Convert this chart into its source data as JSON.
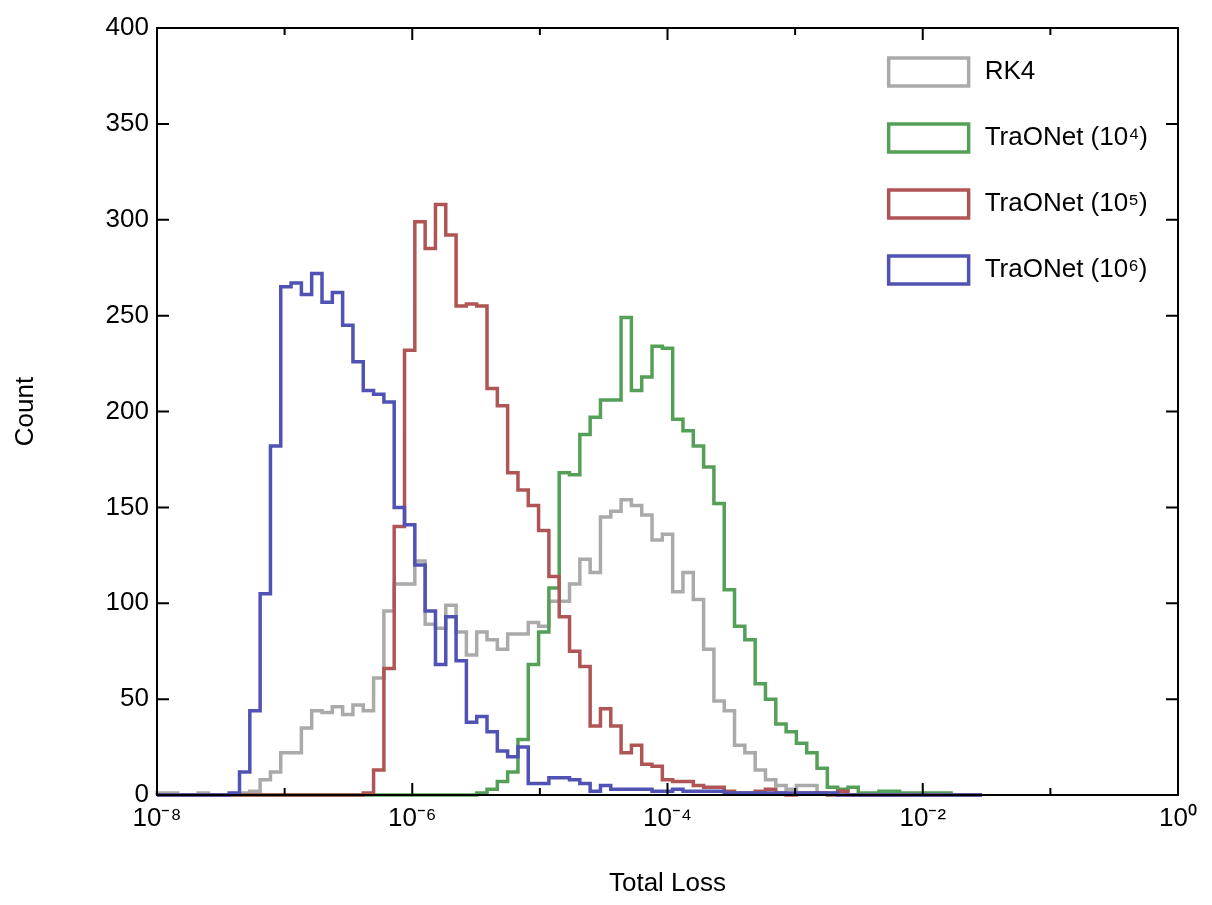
{
  "chart_data": {
    "type": "histogram",
    "xlabel": "Total Loss",
    "ylabel": "Count",
    "log": "x",
    "grid": false,
    "legend": "top right",
    "xlim": [
      1e-08,
      1
    ],
    "ylim": [
      0,
      400
    ],
    "xticks": [
      {
        "value": 1e-08,
        "label": "10⁻⁸"
      },
      {
        "value": 1e-07,
        "label": null
      },
      {
        "value": 1e-06,
        "label": "10⁻⁶"
      },
      {
        "value": 1e-05,
        "label": null
      },
      {
        "value": 0.0001,
        "label": "10⁻⁴"
      },
      {
        "value": 0.001,
        "label": null
      },
      {
        "value": 0.01,
        "label": "10⁻²"
      },
      {
        "value": 0.1,
        "label": null
      },
      {
        "value": 1,
        "label": "10⁰"
      }
    ],
    "yticks": [
      0,
      50,
      100,
      150,
      200,
      250,
      300,
      350,
      400
    ],
    "bins": [
      1e-08,
      1.2045e-08,
      1.4508e-08,
      1.7475e-08,
      2.1049e-08,
      2.5354e-08,
      3.0539e-08,
      3.6785e-08,
      4.4306e-08,
      5.3367e-08,
      6.4281e-08,
      7.7426e-08,
      9.326e-08,
      1.1233e-07,
      1.353e-07,
      1.6297e-07,
      1.963e-07,
      2.3645e-07,
      2.848e-07,
      3.4304e-07,
      4.132e-07,
      4.977e-07,
      5.9948e-07,
      7.2208e-07,
      8.6975e-07,
      1.0476e-06,
      1.2619e-06,
      1.5199e-06,
      1.8307e-06,
      2.2051e-06,
      2.6561e-06,
      3.1993e-06,
      3.8535e-06,
      4.6416e-06,
      5.5908e-06,
      6.7342e-06,
      8.1113e-06,
      9.7701e-06,
      1.1768e-05,
      1.4175e-05,
      1.7074e-05,
      2.0565e-05,
      2.4771e-05,
      2.9836e-05,
      3.5938e-05,
      4.3288e-05,
      5.214e-05,
      6.2803e-05,
      7.5646e-05,
      9.1116e-05,
      0.00010975,
      0.00013219,
      0.00015923,
      0.00019179,
      0.00023101,
      0.00027826,
      0.00033516,
      0.0004037,
      0.00048626,
      0.0005857,
      0.00070548,
      0.00084975,
      0.0010235,
      0.0012328,
      0.001485,
      0.0017886,
      0.0021544,
      0.002595,
      0.0031257,
      0.0037649,
      0.0045348,
      0.0054622,
      0.0065793,
      0.0079248,
      0.0095455,
      0.011498,
      0.013849,
      0.016681,
      0.020092,
      0.024201,
      0.02915
    ],
    "series": [
      {
        "name": "RK4",
        "color": "#aaaaaa",
        "values": [
          1,
          1,
          0,
          0,
          1,
          0,
          0,
          0,
          1,
          2,
          8,
          12,
          22,
          22,
          35,
          44,
          43,
          46,
          42,
          47,
          44,
          61,
          96,
          110,
          110,
          122,
          89,
          87,
          99,
          85,
          73,
          85,
          81,
          76,
          84,
          84,
          90,
          88,
          101,
          101,
          110,
          123,
          116,
          145,
          148,
          154,
          151,
          146,
          133,
          136,
          106,
          116,
          102,
          76,
          49,
          44,
          26,
          22,
          13,
          8,
          5,
          3,
          5,
          5,
          1,
          1,
          0,
          0,
          0,
          0,
          0,
          0,
          0,
          0,
          0,
          0,
          0,
          0,
          0,
          0
        ]
      },
      {
        "name": "TraONet (10⁴)",
        "color": "#55a058",
        "values": [
          0,
          0,
          0,
          0,
          0,
          0,
          0,
          0,
          0,
          0,
          0,
          0,
          0,
          0,
          0,
          0,
          0,
          0,
          0,
          0,
          0,
          0,
          0,
          0,
          0,
          0,
          0,
          0,
          0,
          0,
          0,
          1,
          3,
          7,
          12,
          29,
          68,
          85,
          108,
          168,
          167,
          188,
          197,
          206,
          206,
          249,
          211,
          218,
          234,
          233,
          196,
          190,
          182,
          171,
          152,
          107,
          88,
          81,
          58,
          50,
          37,
          33,
          27,
          22,
          14,
          4,
          3,
          4,
          1,
          1,
          2,
          2,
          1,
          1,
          1,
          1,
          1,
          0,
          0,
          0
        ]
      },
      {
        "name": "TraONet (10⁵)",
        "color": "#b05555",
        "values": [
          0,
          0,
          0,
          0,
          0,
          0,
          0,
          0,
          0,
          0,
          0,
          0,
          0,
          0,
          0,
          0,
          0,
          0,
          0,
          0,
          1,
          13,
          66,
          140,
          232,
          299,
          285,
          308,
          292,
          255,
          256,
          255,
          212,
          203,
          168,
          159,
          151,
          138,
          114,
          93,
          75,
          67,
          36,
          45,
          36,
          22,
          26,
          16,
          15,
          8,
          7,
          7,
          5,
          4,
          4,
          2,
          1,
          1,
          2,
          3,
          1,
          0,
          1,
          1,
          1,
          0,
          2,
          0,
          0,
          0,
          0,
          0,
          0,
          0,
          0,
          0,
          0,
          0,
          0,
          0
        ]
      },
      {
        "name": "TraONet (10⁶)",
        "color": "#5052b4",
        "values": [
          0,
          0,
          0,
          0,
          0,
          0,
          0,
          1,
          12,
          44,
          105,
          182,
          265,
          267,
          261,
          272,
          257,
          262,
          245,
          226,
          211,
          209,
          205,
          150,
          141,
          120,
          96,
          68,
          93,
          70,
          38,
          41,
          33,
          23,
          20,
          25,
          6,
          6,
          9,
          9,
          8,
          6,
          2,
          5,
          3,
          3,
          3,
          3,
          2,
          2,
          3,
          2,
          2,
          2,
          2,
          1,
          1,
          1,
          1,
          1,
          1,
          1,
          1,
          1,
          1,
          1,
          0,
          0,
          0,
          0,
          0,
          0,
          0,
          0,
          0,
          0,
          0,
          0,
          0,
          0
        ]
      }
    ]
  }
}
